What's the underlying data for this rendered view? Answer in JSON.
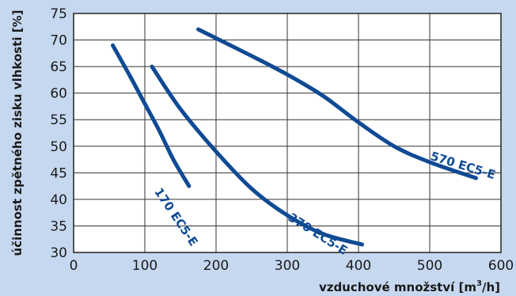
{
  "chart_data": {
    "type": "line",
    "title": "",
    "xlabel": "vzduchové množství",
    "xlabel_unit_base": "m",
    "xlabel_unit_sup": "3",
    "xlabel_unit_tail": "/h",
    "ylabel": "účinnost zpětného zisku vlhkosti [%]",
    "xlim": [
      0,
      600
    ],
    "ylim": [
      30,
      75
    ],
    "x_ticks": [
      0,
      100,
      200,
      300,
      400,
      500,
      600
    ],
    "y_ticks": [
      30,
      35,
      40,
      45,
      50,
      55,
      60,
      65,
      70,
      75
    ],
    "grid": true,
    "line_color": "#0f4a94",
    "series": [
      {
        "name": "170 EC5-E",
        "points": [
          [
            55,
            69
          ],
          [
            80,
            63
          ],
          [
            100,
            58
          ],
          [
            120,
            53
          ],
          [
            140,
            47.5
          ],
          [
            162,
            42.5
          ]
        ]
      },
      {
        "name": "370 EC5-E",
        "points": [
          [
            110,
            65
          ],
          [
            150,
            57
          ],
          [
            200,
            49
          ],
          [
            250,
            42
          ],
          [
            300,
            37
          ],
          [
            350,
            33.5
          ],
          [
            405,
            31.5
          ]
        ]
      },
      {
        "name": "570 EC5-E",
        "points": [
          [
            175,
            72
          ],
          [
            250,
            67
          ],
          [
            300,
            63.5
          ],
          [
            350,
            59.5
          ],
          [
            400,
            54.5
          ],
          [
            450,
            50
          ],
          [
            500,
            47
          ],
          [
            565,
            44
          ]
        ]
      }
    ]
  }
}
